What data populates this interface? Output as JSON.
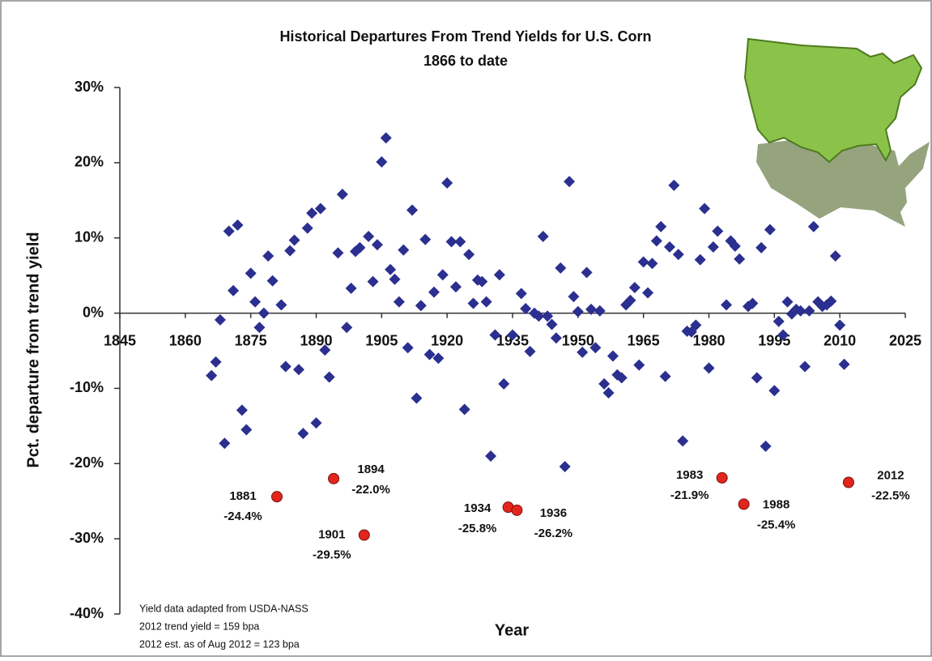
{
  "chart_data": {
    "type": "scatter",
    "title": "Historical Departures From Trend Yields for U.S. Corn",
    "subtitle": "1866 to date",
    "x_label": "Year",
    "y_label": "Pct. departure from trend yield",
    "notes": [
      "Yield data adapted from USDA-NASS",
      "2012 trend yield = 159 bpa",
      "2012 est. as of Aug 2012 = 123 bpa"
    ],
    "xlim": [
      1845,
      2025
    ],
    "xticks": [
      1845,
      1860,
      1875,
      1890,
      1905,
      1920,
      1935,
      1950,
      1965,
      1980,
      1995,
      2010,
      2025
    ],
    "ylim": [
      -40,
      30
    ],
    "yticks": [
      {
        "value": 30,
        "label": "30%"
      },
      {
        "value": 20,
        "label": "20%"
      },
      {
        "value": 10,
        "label": "10%"
      },
      {
        "value": 0,
        "label": "0%"
      },
      {
        "value": -10,
        "label": "-10%"
      },
      {
        "value": -20,
        "label": "-20%"
      },
      {
        "value": -30,
        "label": "-30%"
      },
      {
        "value": -40,
        "label": "-40%"
      }
    ],
    "series": [
      {
        "color": "#2b2f8f",
        "marker": "diamond",
        "x": [
          1866,
          1867,
          1868,
          1869,
          1870,
          1871,
          1872,
          1873,
          1874,
          1875,
          1876,
          1877,
          1878,
          1879,
          1880,
          1882,
          1883,
          1884,
          1885,
          1886,
          1887,
          1888,
          1889,
          1890,
          1891,
          1892,
          1893,
          1895,
          1896,
          1897,
          1898,
          1899,
          1900,
          1902,
          1903,
          1904,
          1905,
          1906,
          1907,
          1908,
          1909,
          1910,
          1911,
          1912,
          1913,
          1914,
          1915,
          1916,
          1917,
          1918,
          1919,
          1920,
          1921,
          1922,
          1923,
          1924,
          1925,
          1926,
          1927,
          1928,
          1929,
          1930,
          1931,
          1932,
          1933,
          1935,
          1937,
          1938,
          1939,
          1940,
          1941,
          1942,
          1943,
          1944,
          1945,
          1946,
          1947,
          1948,
          1949,
          1950,
          1951,
          1952,
          1953,
          1954,
          1955,
          1956,
          1957,
          1958,
          1959,
          1960,
          1961,
          1962,
          1963,
          1964,
          1965,
          1966,
          1967,
          1968,
          1969,
          1970,
          1971,
          1972,
          1973,
          1974,
          1975,
          1976,
          1977,
          1978,
          1979,
          1980,
          1981,
          1982,
          1984,
          1985,
          1986,
          1987,
          1989,
          1990,
          1991,
          1992,
          1993,
          1994,
          1995,
          1996,
          1997,
          1998,
          1999,
          2000,
          2001,
          2002,
          2003,
          2004,
          2005,
          2006,
          2007,
          2008,
          2009,
          2010,
          2011
        ],
        "values": [
          -8.3,
          -6.5,
          -0.9,
          -17.3,
          10.9,
          3.0,
          11.7,
          -12.9,
          -15.5,
          5.3,
          1.5,
          -1.9,
          0.0,
          7.6,
          4.3,
          1.1,
          -7.1,
          8.3,
          9.7,
          -7.5,
          -16.0,
          11.3,
          13.3,
          -14.6,
          13.9,
          -4.9,
          -8.5,
          8.0,
          15.8,
          -1.9,
          3.3,
          8.2,
          8.7,
          10.2,
          4.2,
          9.1,
          20.1,
          23.3,
          5.8,
          4.5,
          1.5,
          8.4,
          -4.6,
          13.7,
          -11.3,
          1.0,
          9.8,
          -5.5,
          2.8,
          -6.0,
          5.1,
          17.3,
          9.5,
          3.5,
          9.5,
          -12.8,
          7.8,
          1.3,
          4.4,
          4.2,
          1.5,
          -19.0,
          -2.9,
          5.1,
          -9.4,
          -2.9,
          2.6,
          0.6,
          -5.1,
          0.0,
          -0.4,
          10.2,
          -0.4,
          -1.5,
          -3.3,
          6.0,
          -20.4,
          17.5,
          2.2,
          0.2,
          -5.2,
          5.4,
          0.5,
          -4.6,
          0.3,
          -9.4,
          -10.6,
          -5.7,
          -8.2,
          -8.6,
          1.1,
          1.7,
          3.4,
          -6.9,
          6.8,
          2.7,
          6.6,
          9.6,
          11.5,
          -8.4,
          8.8,
          17.0,
          7.8,
          -17.0,
          -2.4,
          -2.5,
          -1.6,
          7.1,
          13.9,
          -7.3,
          8.8,
          10.9,
          1.1,
          9.6,
          8.9,
          7.2,
          0.9,
          1.3,
          -8.6,
          8.7,
          -17.7,
          11.1,
          -10.3,
          -1.1,
          -2.9,
          1.5,
          -0.1,
          0.5,
          0.3,
          -7.1,
          0.3,
          11.5,
          1.5,
          0.9,
          1.1,
          1.6,
          7.6,
          -1.6,
          -6.8
        ]
      },
      {
        "color": "#e3261c",
        "marker": "circle",
        "x": [
          1881,
          1894,
          1901,
          1934,
          1936,
          1983,
          1988,
          2012
        ],
        "values": [
          -24.4,
          -22.0,
          -29.5,
          -25.8,
          -26.2,
          -21.9,
          -25.4,
          -22.5
        ],
        "value_labels": [
          "-24.4%",
          "-22.0%",
          "-29.5%",
          "-25.8%",
          "-26.2%",
          "-21.9%",
          "-25.4%",
          "-22.5%"
        ]
      }
    ]
  }
}
